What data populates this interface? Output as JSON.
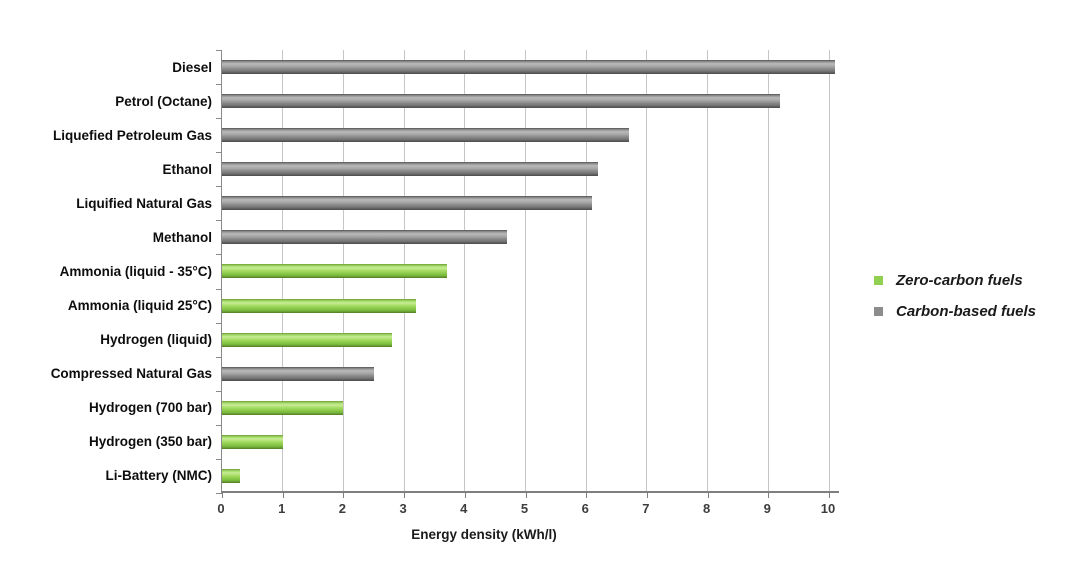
{
  "chart_data": {
    "type": "bar",
    "orientation": "horizontal",
    "title": "",
    "xlabel": "Energy density (kWh/l)",
    "ylabel": "",
    "xlim": [
      0,
      10.2
    ],
    "x_ticks": [
      0,
      1,
      2,
      3,
      4,
      5,
      6,
      7,
      8,
      9,
      10
    ],
    "grid": "vertical-gridlines-on",
    "legend_position": "right-center",
    "bars": [
      {
        "label": "Diesel",
        "value": 10.1,
        "group": "carbon"
      },
      {
        "label": "Petrol (Octane)",
        "value": 9.2,
        "group": "carbon"
      },
      {
        "label": "Liquefied Petroleum Gas",
        "value": 6.7,
        "group": "carbon"
      },
      {
        "label": "Ethanol",
        "value": 6.2,
        "group": "carbon"
      },
      {
        "label": "Liquified Natural Gas",
        "value": 6.1,
        "group": "carbon"
      },
      {
        "label": "Methanol",
        "value": 4.7,
        "group": "carbon"
      },
      {
        "label": "Ammonia (liquid - 35°C)",
        "value": 3.7,
        "group": "zero"
      },
      {
        "label": "Ammonia (liquid 25°C)",
        "value": 3.2,
        "group": "zero"
      },
      {
        "label": "Hydrogen (liquid)",
        "value": 2.8,
        "group": "zero"
      },
      {
        "label": "Compressed Natural Gas",
        "value": 2.5,
        "group": "carbon"
      },
      {
        "label": "Hydrogen (700 bar)",
        "value": 2.0,
        "group": "zero"
      },
      {
        "label": "Hydrogen (350 bar)",
        "value": 1.0,
        "group": "zero"
      },
      {
        "label": "Li-Battery (NMC)",
        "value": 0.3,
        "group": "zero"
      }
    ],
    "legend": [
      {
        "label": "Zero-carbon fuels",
        "group": "zero",
        "color": "#92d050"
      },
      {
        "label": "Carbon-based fuels",
        "group": "carbon",
        "color": "#8c8c8c"
      }
    ],
    "colors": {
      "zero_carbon_fuels": "#92d050",
      "carbon_based_fuels": "#8c8c8c",
      "gridline": "#c6c6c6",
      "axis_line": "#7f7f7f",
      "label_text": "#0d0d0d"
    }
  }
}
